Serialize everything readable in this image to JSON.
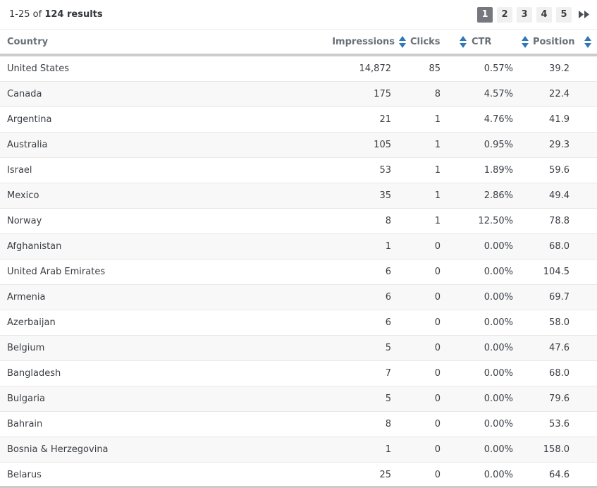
{
  "results_bar": {
    "range_text": "1-25 of ",
    "total_text": "124 results",
    "pages": [
      "1",
      "2",
      "3",
      "4",
      "5"
    ],
    "active_page": "1",
    "skip_icon": "skip-forward-icon"
  },
  "table": {
    "columns": [
      {
        "label": "Country",
        "sortable": false
      },
      {
        "label": "Impressions",
        "sortable": true
      },
      {
        "label": "Clicks",
        "sortable": true
      },
      {
        "label": "CTR",
        "sortable": true
      },
      {
        "label": "Position",
        "sortable": true
      }
    ],
    "rows": [
      {
        "country": "United States",
        "impressions": "14,872",
        "clicks": "85",
        "ctr": "0.57%",
        "position": "39.2"
      },
      {
        "country": "Canada",
        "impressions": "175",
        "clicks": "8",
        "ctr": "4.57%",
        "position": "22.4"
      },
      {
        "country": "Argentina",
        "impressions": "21",
        "clicks": "1",
        "ctr": "4.76%",
        "position": "41.9"
      },
      {
        "country": "Australia",
        "impressions": "105",
        "clicks": "1",
        "ctr": "0.95%",
        "position": "29.3"
      },
      {
        "country": "Israel",
        "impressions": "53",
        "clicks": "1",
        "ctr": "1.89%",
        "position": "59.6"
      },
      {
        "country": "Mexico",
        "impressions": "35",
        "clicks": "1",
        "ctr": "2.86%",
        "position": "49.4"
      },
      {
        "country": "Norway",
        "impressions": "8",
        "clicks": "1",
        "ctr": "12.50%",
        "position": "78.8"
      },
      {
        "country": "Afghanistan",
        "impressions": "1",
        "clicks": "0",
        "ctr": "0.00%",
        "position": "68.0"
      },
      {
        "country": "United Arab Emirates",
        "impressions": "6",
        "clicks": "0",
        "ctr": "0.00%",
        "position": "104.5"
      },
      {
        "country": "Armenia",
        "impressions": "6",
        "clicks": "0",
        "ctr": "0.00%",
        "position": "69.7"
      },
      {
        "country": "Azerbaijan",
        "impressions": "6",
        "clicks": "0",
        "ctr": "0.00%",
        "position": "58.0"
      },
      {
        "country": "Belgium",
        "impressions": "5",
        "clicks": "0",
        "ctr": "0.00%",
        "position": "47.6"
      },
      {
        "country": "Bangladesh",
        "impressions": "7",
        "clicks": "0",
        "ctr": "0.00%",
        "position": "68.0"
      },
      {
        "country": "Bulgaria",
        "impressions": "5",
        "clicks": "0",
        "ctr": "0.00%",
        "position": "79.6"
      },
      {
        "country": "Bahrain",
        "impressions": "8",
        "clicks": "0",
        "ctr": "0.00%",
        "position": "53.6"
      },
      {
        "country": "Bosnia & Herzegovina",
        "impressions": "1",
        "clicks": "0",
        "ctr": "0.00%",
        "position": "158.0"
      },
      {
        "country": "Belarus",
        "impressions": "25",
        "clicks": "0",
        "ctr": "0.00%",
        "position": "64.6"
      }
    ]
  },
  "colors": {
    "sort_arrow_blue": "#2e77b8",
    "active_page_bg": "#75787e",
    "page_btn_bg": "#f0f0f0",
    "row_stripe": "#f8f8f8",
    "header_border": "#cccccc",
    "row_border": "#e8e8e8",
    "header_text": "#697077",
    "body_text": "#3a3e44"
  }
}
